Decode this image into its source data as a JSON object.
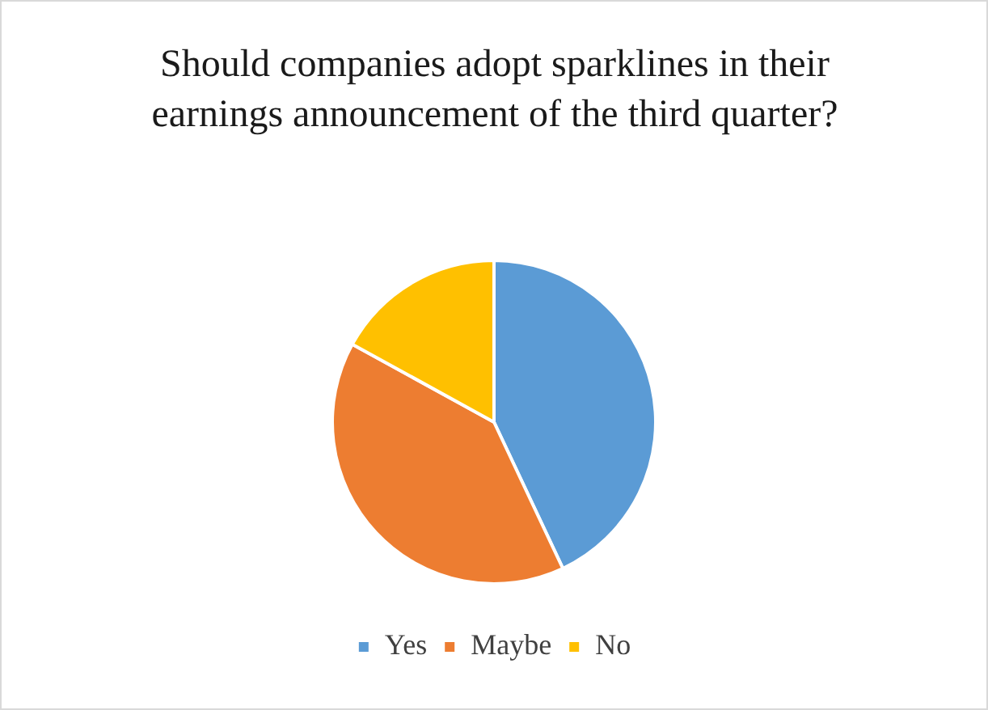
{
  "chart_data": {
    "type": "pie",
    "title": "Should companies adopt sparklines in their earnings announcement of the third quarter?",
    "categories": [
      "Yes",
      "Maybe",
      "No"
    ],
    "values": [
      43,
      40,
      17
    ],
    "colors": [
      "#5b9bd5",
      "#ed7d31",
      "#ffc000"
    ],
    "legend": "bottom"
  }
}
